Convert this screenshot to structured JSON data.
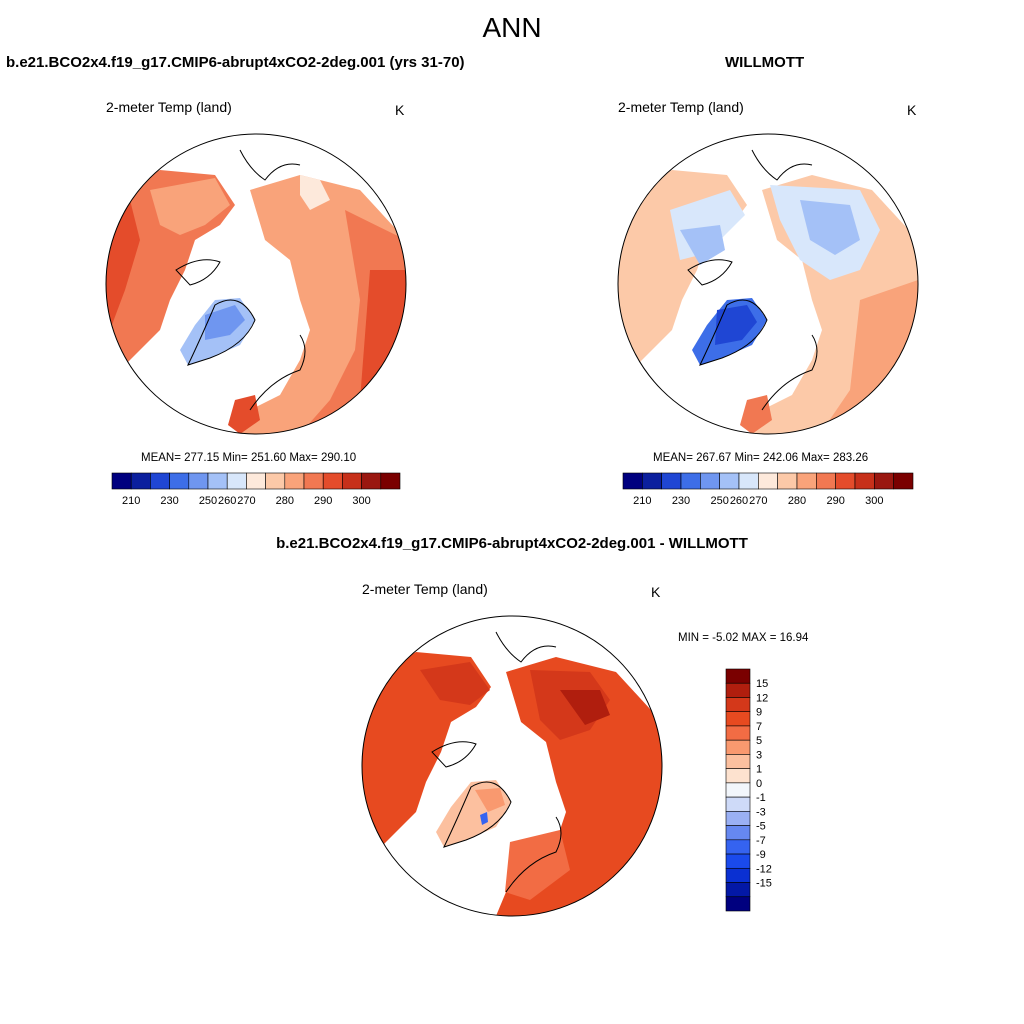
{
  "title": "ANN",
  "colors": {
    "abs_scale": [
      "#00007f",
      "#0b1f9e",
      "#1f46d4",
      "#3d6ee8",
      "#6f96f0",
      "#a4c1f7",
      "#d8e7fb",
      "#fde9db",
      "#fcc9a8",
      "#f9a37a",
      "#f17852",
      "#e44c2b",
      "#c7301a",
      "#9a1710",
      "#7a0000"
    ],
    "diff_scale": [
      "#00007f",
      "#0318a6",
      "#0a30d2",
      "#1a4aec",
      "#3563f0",
      "#6688f0",
      "#9ab0f4",
      "#cedaf8",
      "#f2f6fb",
      "#fde2cf",
      "#fcc09f",
      "#f9996f",
      "#f26c44",
      "#e74a20",
      "#d4381a",
      "#b01e0e",
      "#7a0000"
    ],
    "land_outline": "#000000"
  },
  "panels": [
    {
      "id": "model",
      "heading": "b.e21.BCO2x4.f19_g17.CMIP6-abrupt4xCO2-2deg.001 (yrs 31-70)",
      "variable": "2-meter Temp (land)",
      "units": "K",
      "stats": "MEAN= 277.15  Min= 251.60  Max= 290.10",
      "colorbar_labels": [
        "210",
        "230",
        "250",
        "260",
        "270",
        "280",
        "290",
        "300"
      ]
    },
    {
      "id": "obs",
      "heading": "WILLMOTT",
      "variable": "2-meter Temp (land)",
      "units": "K",
      "stats": "MEAN= 267.67  Min= 242.06  Max= 283.26",
      "colorbar_labels": [
        "210",
        "230",
        "250",
        "260",
        "270",
        "280",
        "290",
        "300"
      ]
    },
    {
      "id": "diff",
      "heading": "b.e21.BCO2x4.f19_g17.CMIP6-abrupt4xCO2-2deg.001 - WILLMOTT",
      "variable": "2-meter Temp (land)",
      "units": "K",
      "stats": "MIN =  -5.02 MAX =  16.94",
      "colorbar_labels": [
        "15",
        "12",
        "9",
        "7",
        "5",
        "3",
        "1",
        "0",
        "-1",
        "-3",
        "-5",
        "-7",
        "-9",
        "-12",
        "-15"
      ]
    }
  ]
}
